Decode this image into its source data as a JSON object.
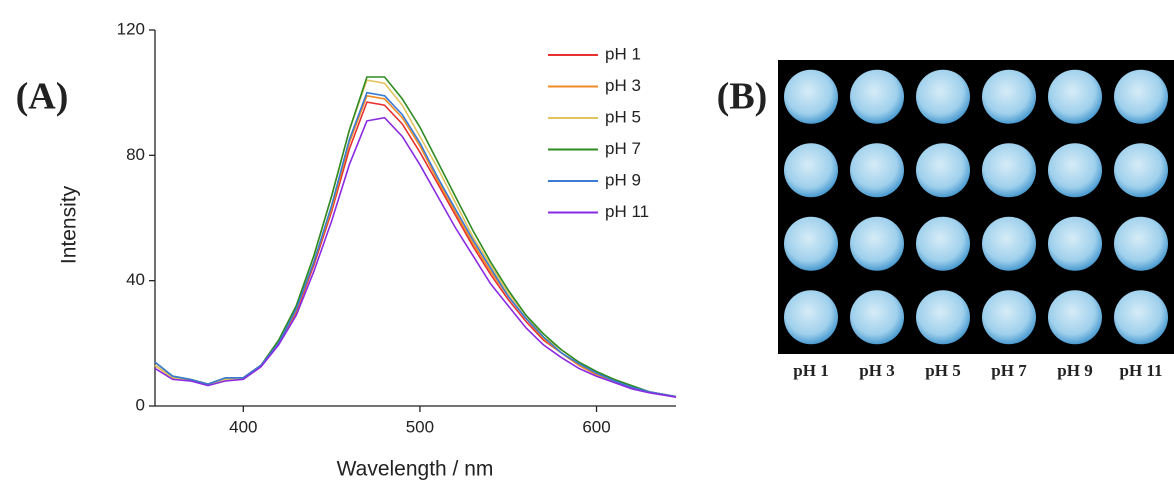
{
  "chart_data": {
    "type": "line",
    "panel_label": "(A)",
    "x_label": "Wavelength / nm",
    "y_label": "Intensity",
    "x": [
      350,
      360,
      370,
      380,
      390,
      400,
      410,
      420,
      430,
      440,
      450,
      460,
      470,
      480,
      490,
      500,
      510,
      520,
      530,
      540,
      550,
      560,
      570,
      580,
      590,
      600,
      610,
      620,
      630,
      640,
      645
    ],
    "series": [
      {
        "name": "pH 1",
        "color": "#e8312f",
        "values": [
          13,
          9,
          8.5,
          7,
          8.5,
          9,
          13,
          20,
          30,
          45,
          62,
          82,
          97,
          96,
          90,
          81,
          71,
          61,
          51,
          42,
          34,
          27,
          21,
          17,
          13,
          10,
          8,
          6,
          4.5,
          3.5,
          3
        ]
      },
      {
        "name": "pH 3",
        "color": "#f08a24",
        "values": [
          13,
          9,
          8.5,
          7,
          8.5,
          9,
          13,
          20,
          30.5,
          46,
          63,
          84,
          99,
          98,
          92,
          83,
          72,
          62,
          52,
          43,
          35,
          28,
          21.5,
          17,
          13,
          10,
          8,
          6,
          4.5,
          3.5,
          3
        ]
      },
      {
        "name": "pH 5",
        "color": "#e3c35e",
        "values": [
          13,
          9,
          8.5,
          7,
          8.5,
          9,
          13,
          21,
          32,
          48,
          67,
          88,
          104,
          103,
          96,
          86,
          76,
          65,
          54,
          45,
          36,
          29,
          22,
          18,
          14,
          10.5,
          8,
          6,
          4.5,
          3.5,
          3
        ]
      },
      {
        "name": "pH 7",
        "color": "#2e8b22",
        "values": [
          14,
          9.5,
          8.5,
          7,
          9,
          9,
          13,
          21,
          32,
          48,
          67,
          88,
          105,
          105,
          98,
          89,
          78,
          67,
          56,
          46,
          37,
          29,
          23,
          18,
          14,
          11,
          8.5,
          6.5,
          4.5,
          3.5,
          3
        ]
      },
      {
        "name": "pH 9",
        "color": "#3a7bd5",
        "values": [
          14,
          9.5,
          8.5,
          7,
          9,
          9,
          13,
          20,
          31,
          46,
          64,
          85,
          100,
          99,
          93,
          84,
          73,
          63,
          53,
          44,
          35,
          28,
          22,
          17,
          13.5,
          10.5,
          8,
          6,
          4.5,
          3.5,
          3
        ]
      },
      {
        "name": "pH 11",
        "color": "#8a2be2",
        "values": [
          12,
          8.5,
          8,
          6.5,
          8,
          8.5,
          12.5,
          19.5,
          29,
          43,
          59,
          77,
          91,
          92,
          86,
          77,
          67,
          57,
          48,
          39,
          32,
          25,
          19.5,
          15.5,
          12,
          9.5,
          7.5,
          5.5,
          4.2,
          3.3,
          2.8
        ]
      }
    ],
    "xlim": [
      350,
      645
    ],
    "xticks": [
      400,
      500,
      600
    ],
    "ylim": [
      0,
      120
    ],
    "yticks": [
      0,
      40,
      80,
      120
    ],
    "legend": "upper right"
  },
  "photo": {
    "label": "(B)",
    "columns": [
      "pH 1",
      "pH 3",
      "pH 5",
      "pH 7",
      "pH 9",
      "pH 11"
    ],
    "rows": 4
  }
}
